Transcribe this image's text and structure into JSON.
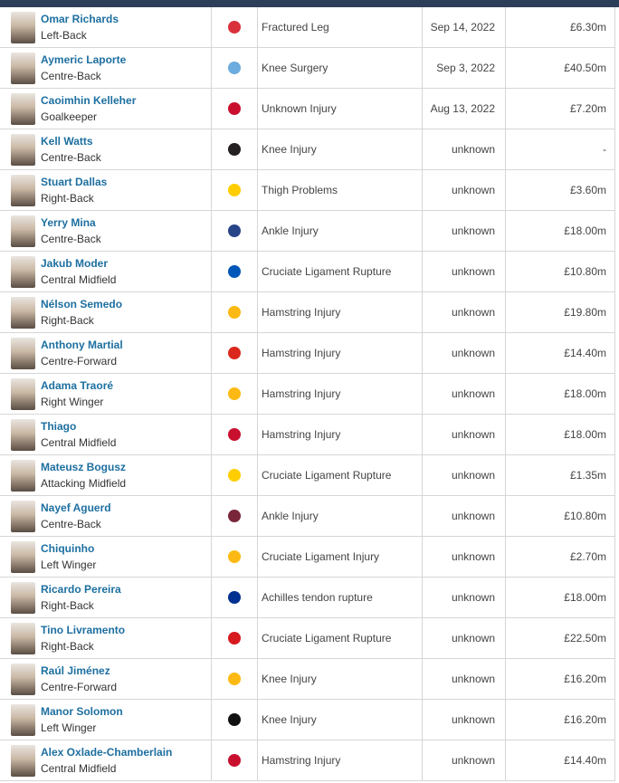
{
  "table": {
    "rows": [
      {
        "name": "Omar Richards",
        "position": "Left-Back",
        "injury": "Fractured Leg",
        "date": "Sep 14, 2022",
        "value": "£6.30m"
      },
      {
        "name": "Aymeric Laporte",
        "position": "Centre-Back",
        "injury": "Knee Surgery",
        "date": "Sep 3, 2022",
        "value": "£40.50m"
      },
      {
        "name": "Caoimhin Kelleher",
        "position": "Goalkeeper",
        "injury": "Unknown Injury",
        "date": "Aug 13, 2022",
        "value": "£7.20m"
      },
      {
        "name": "Kell Watts",
        "position": "Centre-Back",
        "injury": "Knee Injury",
        "date": "unknown",
        "value": "-"
      },
      {
        "name": "Stuart Dallas",
        "position": "Right-Back",
        "injury": "Thigh Problems",
        "date": "unknown",
        "value": "£3.60m"
      },
      {
        "name": "Yerry Mina",
        "position": "Centre-Back",
        "injury": "Ankle Injury",
        "date": "unknown",
        "value": "£18.00m"
      },
      {
        "name": "Jakub Moder",
        "position": "Central Midfield",
        "injury": "Cruciate Ligament Rupture",
        "date": "unknown",
        "value": "£10.80m"
      },
      {
        "name": "Nélson Semedo",
        "position": "Right-Back",
        "injury": "Hamstring Injury",
        "date": "unknown",
        "value": "£19.80m"
      },
      {
        "name": "Anthony Martial",
        "position": "Centre-Forward",
        "injury": "Hamstring Injury",
        "date": "unknown",
        "value": "£14.40m"
      },
      {
        "name": "Adama Traoré",
        "position": "Right Winger",
        "injury": "Hamstring Injury",
        "date": "unknown",
        "value": "£18.00m"
      },
      {
        "name": "Thiago",
        "position": "Central Midfield",
        "injury": "Hamstring Injury",
        "date": "unknown",
        "value": "£18.00m"
      },
      {
        "name": "Mateusz Bogusz",
        "position": "Attacking Midfield",
        "injury": "Cruciate Ligament Rupture",
        "date": "unknown",
        "value": "£1.35m"
      },
      {
        "name": "Nayef Aguerd",
        "position": "Centre-Back",
        "injury": "Ankle Injury",
        "date": "unknown",
        "value": "£10.80m"
      },
      {
        "name": "Chiquinho",
        "position": "Left Winger",
        "injury": "Cruciate Ligament Injury",
        "date": "unknown",
        "value": "£2.70m"
      },
      {
        "name": "Ricardo Pereira",
        "position": "Right-Back",
        "injury": "Achilles tendon rupture",
        "date": "unknown",
        "value": "£18.00m"
      },
      {
        "name": "Tino Livramento",
        "position": "Right-Back",
        "injury": "Cruciate Ligament Rupture",
        "date": "unknown",
        "value": "£22.50m"
      },
      {
        "name": "Raúl Jiménez",
        "position": "Centre-Forward",
        "injury": "Knee Injury",
        "date": "unknown",
        "value": "£16.20m"
      },
      {
        "name": "Manor Solomon",
        "position": "Left Winger",
        "injury": "Knee Injury",
        "date": "unknown",
        "value": "£16.20m"
      },
      {
        "name": "Alex Oxlade-Chamberlain",
        "position": "Central Midfield",
        "injury": "Hamstring Injury",
        "date": "unknown",
        "value": "£14.40m"
      }
    ]
  }
}
